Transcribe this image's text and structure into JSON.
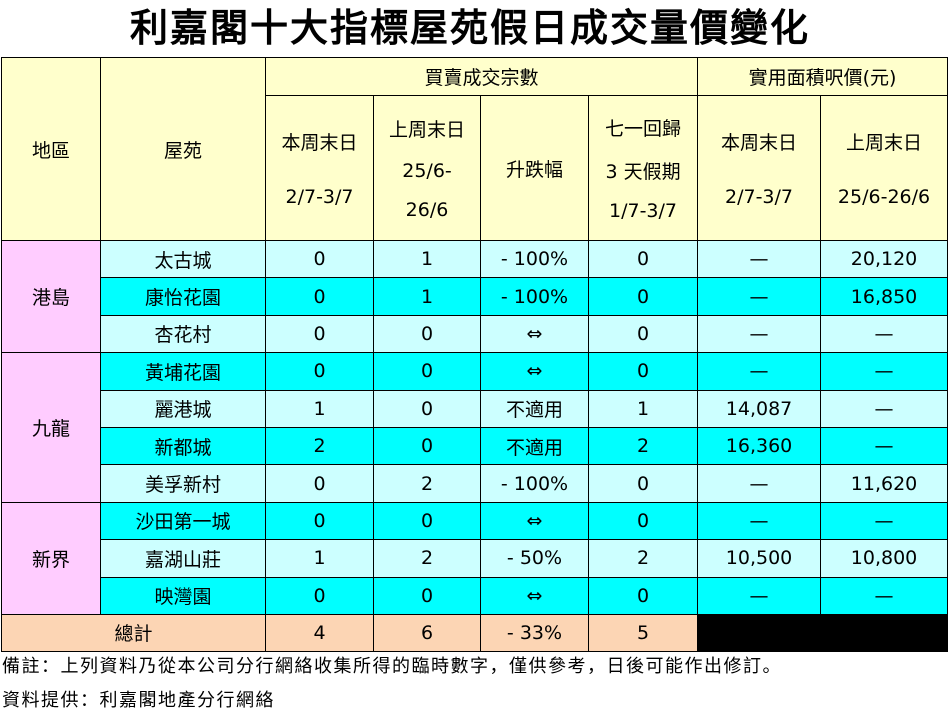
{
  "title": "利嘉閣十大指標屋苑假日成交量價變化",
  "header": {
    "region": "地區",
    "estate": "屋苑",
    "group_deals": "買賣成交宗數",
    "group_price": "實用面積呎價(元)",
    "columns": [
      [
        "本周末日",
        "2/7-3/7"
      ],
      [
        "上周末日",
        "25/6-",
        "26/6"
      ],
      [
        "升跌幅"
      ],
      [
        "七一回歸",
        "3 天假期",
        "1/7-3/7"
      ],
      [
        "本周末日",
        "2/7-3/7"
      ],
      [
        "上周末日",
        "25/6-26/6"
      ]
    ]
  },
  "regions": [
    {
      "name": "港島",
      "rows": [
        [
          "太古城",
          "0",
          "1",
          "- 100%",
          "0",
          "—",
          "20,120"
        ],
        [
          "康怡花園",
          "0",
          "1",
          "- 100%",
          "0",
          "—",
          "16,850"
        ],
        [
          "杏花村",
          "0",
          "0",
          "⇔",
          "0",
          "—",
          "—"
        ]
      ]
    },
    {
      "name": "九龍",
      "rows": [
        [
          "黃埔花園",
          "0",
          "0",
          "⇔",
          "0",
          "—",
          "—"
        ],
        [
          "麗港城",
          "1",
          "0",
          "不適用",
          "1",
          "14,087",
          "—"
        ],
        [
          "新都城",
          "2",
          "0",
          "不適用",
          "2",
          "16,360",
          "—"
        ],
        [
          "美孚新村",
          "0",
          "2",
          "- 100%",
          "0",
          "—",
          "11,620"
        ]
      ]
    },
    {
      "name": "新界",
      "rows": [
        [
          "沙田第一城",
          "0",
          "0",
          "⇔",
          "0",
          "—",
          "—"
        ],
        [
          "嘉湖山莊",
          "1",
          "2",
          "- 50%",
          "2",
          "10,500",
          "10,800"
        ],
        [
          "映灣園",
          "0",
          "0",
          "⇔",
          "0",
          "—",
          "—"
        ]
      ]
    }
  ],
  "total": {
    "label": "總計",
    "values": [
      "4",
      "6",
      "- 33%",
      "5"
    ]
  },
  "notes": [
    "備註：上列資料乃從本公司分行網絡收集所得的臨時數字，僅供參考，日後可能作出修訂。",
    "資料提供：利嘉閣地產分行網絡"
  ]
}
